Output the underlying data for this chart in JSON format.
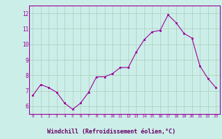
{
  "x": [
    0,
    1,
    2,
    3,
    4,
    5,
    6,
    7,
    8,
    9,
    10,
    11,
    12,
    13,
    14,
    15,
    16,
    17,
    18,
    19,
    20,
    21,
    22,
    23
  ],
  "y": [
    6.7,
    7.4,
    7.2,
    6.9,
    6.2,
    5.8,
    6.2,
    6.9,
    7.9,
    7.9,
    8.1,
    8.5,
    8.5,
    9.5,
    10.3,
    10.8,
    10.9,
    11.9,
    11.4,
    10.7,
    10.4,
    8.6,
    7.8,
    7.2
  ],
  "xlabel": "Windchill (Refroidissement éolien,°C)",
  "ylim": [
    5.5,
    12.5
  ],
  "xlim": [
    -0.5,
    23.5
  ],
  "yticks": [
    6,
    7,
    8,
    9,
    10,
    11,
    12
  ],
  "xticks": [
    0,
    1,
    2,
    3,
    4,
    5,
    6,
    7,
    8,
    9,
    10,
    11,
    12,
    13,
    14,
    15,
    16,
    17,
    18,
    19,
    20,
    21,
    22,
    23
  ],
  "line_color": "#990099",
  "marker_color": "#990099",
  "bg_color": "#cceee8",
  "grid_color": "#aaccbb",
  "tick_label_color": "#990099",
  "xlabel_text_color": "#660066",
  "xlabel_bg": "#cc88cc",
  "spine_color": "#990099"
}
